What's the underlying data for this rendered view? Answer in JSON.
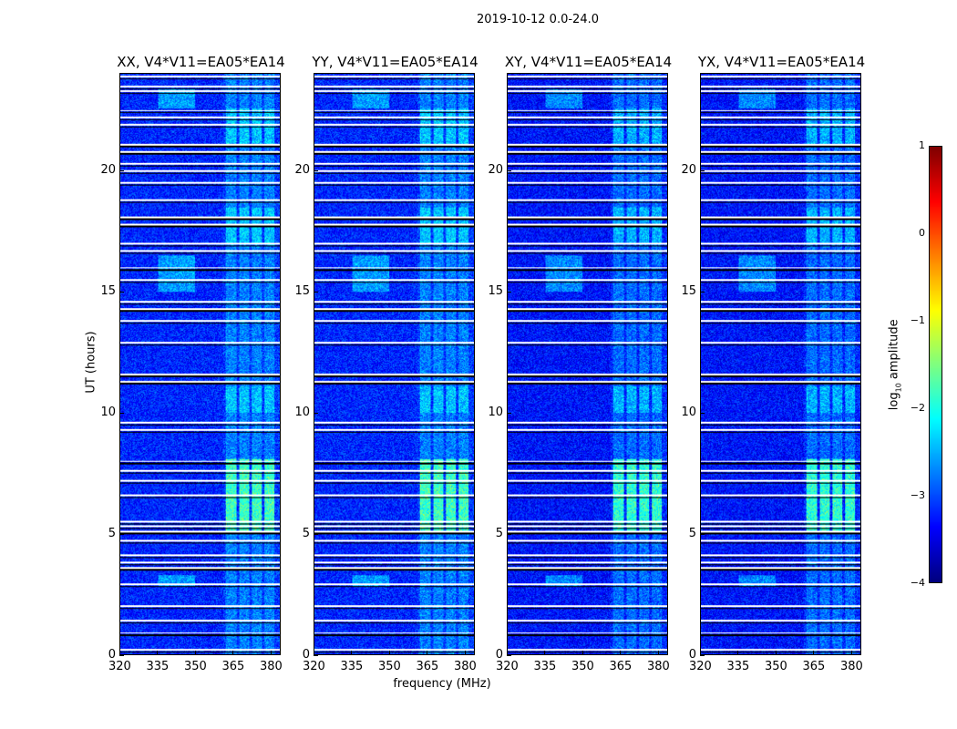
{
  "title": "2019-10-12 0.0-24.0",
  "chart_data": {
    "type": "heatmap",
    "panels": [
      {
        "title": "XX, V4*V11=EA05*EA14"
      },
      {
        "title": "YY, V4*V11=EA05*EA14"
      },
      {
        "title": "XY, V4*V11=EA05*EA14"
      },
      {
        "title": "YX, V4*V11=EA05*EA14"
      }
    ],
    "xlabel": "frequency (MHz)",
    "ylabel": "UT (hours)",
    "xlim": [
      320,
      384
    ],
    "ylim": [
      0,
      24
    ],
    "xticks": [
      "320",
      "335",
      "350",
      "365",
      "380"
    ],
    "yticks": [
      "0",
      "5",
      "10",
      "15",
      "20"
    ],
    "rfi_bands_mhz": [
      [
        362,
        366.5
      ],
      [
        367.5,
        371.5
      ],
      [
        372.5,
        376.5
      ],
      [
        377.5,
        381.5
      ]
    ],
    "flagged_hours": [
      0.2,
      0.9,
      1.4,
      2.0,
      2.9,
      3.6,
      3.8,
      4.1,
      4.7,
      5.1,
      5.3,
      5.5,
      6.6,
      7.2,
      7.6,
      8.0,
      9.3,
      9.6,
      11.3,
      11.6,
      12.9,
      13.8,
      14.3,
      14.6,
      15.5,
      16.0,
      16.7,
      17.0,
      17.8,
      18.1,
      18.8,
      19.5,
      20.0,
      20.3,
      20.8,
      21.1,
      21.9,
      22.2,
      22.5,
      23.3,
      23.5,
      23.9
    ],
    "colorbar": {
      "label": "log10 amplitude",
      "label_main": "log",
      "label_sub": "10",
      "label_rest": " amplitude",
      "range": [
        -4,
        1
      ],
      "ticks": [
        "1",
        "0",
        "−1",
        "−2",
        "−3",
        "−4"
      ],
      "colormap": "jet"
    }
  }
}
